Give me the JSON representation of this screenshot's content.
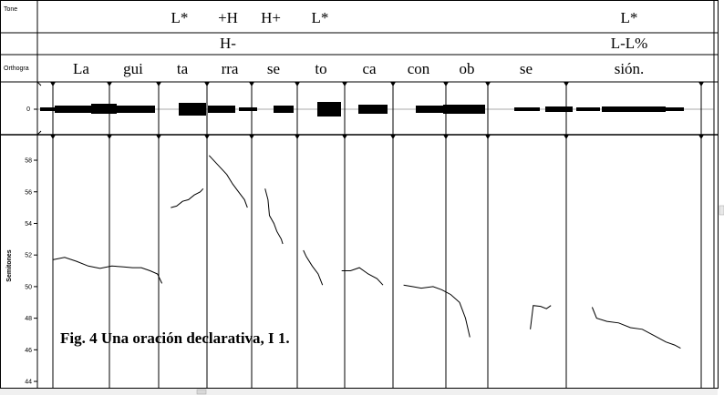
{
  "tiers": {
    "tone": {
      "label": "Tone",
      "row1": [
        "L*",
        "+H",
        "H+",
        "L*",
        "L*"
      ],
      "row2": [
        "H-",
        "L-L%"
      ]
    },
    "ortho": {
      "label": "Orthogra",
      "syllables": [
        "La",
        "gui",
        "ta",
        "rra",
        "se",
        "to",
        "ca",
        "con",
        "ob",
        "se",
        "sión."
      ]
    }
  },
  "wave": {
    "zero_label": "0"
  },
  "pitch": {
    "ylabel": "Semitones",
    "ylim": [
      43.6,
      59.5
    ],
    "ticks": [
      "58",
      "56",
      "54",
      "52",
      "50",
      "48",
      "46",
      "44"
    ],
    "tick_values": [
      58,
      56,
      54,
      52,
      50,
      48,
      46,
      44
    ],
    "segments": [
      [
        [
          0.0,
          51.7
        ],
        [
          0.4,
          51.85
        ],
        [
          0.8,
          51.6
        ],
        [
          1.2,
          51.3
        ],
        [
          1.6,
          51.15
        ],
        [
          2.0,
          51.3
        ],
        [
          2.4,
          51.25
        ],
        [
          2.7,
          51.2
        ],
        [
          3.0,
          51.2
        ],
        [
          3.3,
          51.0
        ],
        [
          3.55,
          50.8
        ],
        [
          3.7,
          50.2
        ]
      ],
      [
        [
          4.0,
          55.0
        ],
        [
          4.2,
          55.1
        ],
        [
          4.4,
          55.4
        ],
        [
          4.6,
          55.5
        ],
        [
          4.8,
          55.8
        ],
        [
          5.0,
          56.0
        ],
        [
          5.1,
          56.2
        ]
      ],
      [
        [
          5.3,
          58.3
        ],
        [
          5.5,
          57.9
        ],
        [
          5.7,
          57.5
        ],
        [
          5.9,
          57.1
        ],
        [
          6.1,
          56.5
        ],
        [
          6.3,
          56.0
        ],
        [
          6.5,
          55.5
        ],
        [
          6.6,
          55.0
        ]
      ],
      [
        [
          7.2,
          56.2
        ],
        [
          7.3,
          55.5
        ],
        [
          7.35,
          54.5
        ],
        [
          7.5,
          54.0
        ],
        [
          7.6,
          53.5
        ],
        [
          7.75,
          53.0
        ],
        [
          7.8,
          52.7
        ]
      ],
      [
        [
          8.5,
          52.3
        ],
        [
          8.6,
          51.9
        ],
        [
          8.8,
          51.3
        ],
        [
          9.0,
          50.8
        ],
        [
          9.15,
          50.1
        ]
      ],
      [
        [
          9.8,
          51.0
        ],
        [
          10.1,
          51.0
        ],
        [
          10.4,
          51.2
        ],
        [
          10.7,
          50.8
        ],
        [
          11.0,
          50.5
        ],
        [
          11.2,
          50.1
        ]
      ],
      [
        [
          11.9,
          50.1
        ],
        [
          12.2,
          50.0
        ],
        [
          12.5,
          49.9
        ],
        [
          12.9,
          50.0
        ],
        [
          13.2,
          49.8
        ],
        [
          13.5,
          49.5
        ],
        [
          13.8,
          49.0
        ],
        [
          14.0,
          48.0
        ],
        [
          14.15,
          46.8
        ]
      ],
      [
        [
          16.2,
          47.3
        ],
        [
          16.3,
          48.8
        ],
        [
          16.55,
          48.75
        ],
        [
          16.75,
          48.6
        ],
        [
          16.9,
          48.8
        ]
      ],
      [
        [
          18.3,
          48.7
        ],
        [
          18.45,
          48.0
        ],
        [
          18.8,
          47.8
        ],
        [
          19.2,
          47.7
        ],
        [
          19.6,
          47.4
        ],
        [
          20.0,
          47.3
        ],
        [
          20.4,
          46.9
        ],
        [
          20.8,
          46.5
        ],
        [
          21.1,
          46.3
        ],
        [
          21.3,
          46.1
        ]
      ]
    ]
  },
  "caption": "Fig. 4 Una oración declarativa, I 1."
}
